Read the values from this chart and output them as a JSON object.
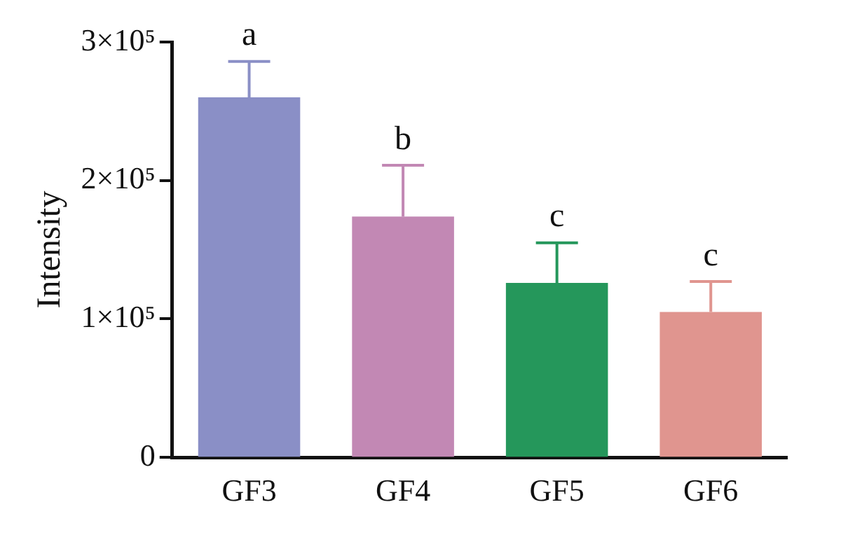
{
  "chart_data": {
    "type": "bar",
    "ylabel": "Intensity",
    "categories": [
      "GF3",
      "GF4",
      "GF5",
      "GF6"
    ],
    "values": [
      260000,
      174000,
      126000,
      105000
    ],
    "colors": [
      "#8a8fc6",
      "#c288b4",
      "#25975b",
      "#e0958f"
    ],
    "errors": [
      [
        260000,
        286000
      ],
      [
        174000,
        211000
      ],
      [
        126000,
        155000
      ],
      [
        105000,
        127000
      ]
    ],
    "ylim": [
      0,
      300000
    ],
    "yticks": [
      0,
      {
        "value": 100000,
        "label": "1×10⁵"
      },
      {
        "value": 200000,
        "label": "2×10⁵"
      },
      {
        "value": 300000,
        "label": "3×10⁵"
      }
    ],
    "annotations": [
      {
        "text": "a",
        "x": "GF3",
        "y": 286000
      },
      {
        "text": "b",
        "x": "GF4",
        "y": 211000
      },
      {
        "text": "c",
        "x": "GF5",
        "y": 155000
      },
      {
        "text": "c",
        "x": "GF6",
        "y": 127000
      }
    ],
    "grid": false,
    "legend": false
  }
}
